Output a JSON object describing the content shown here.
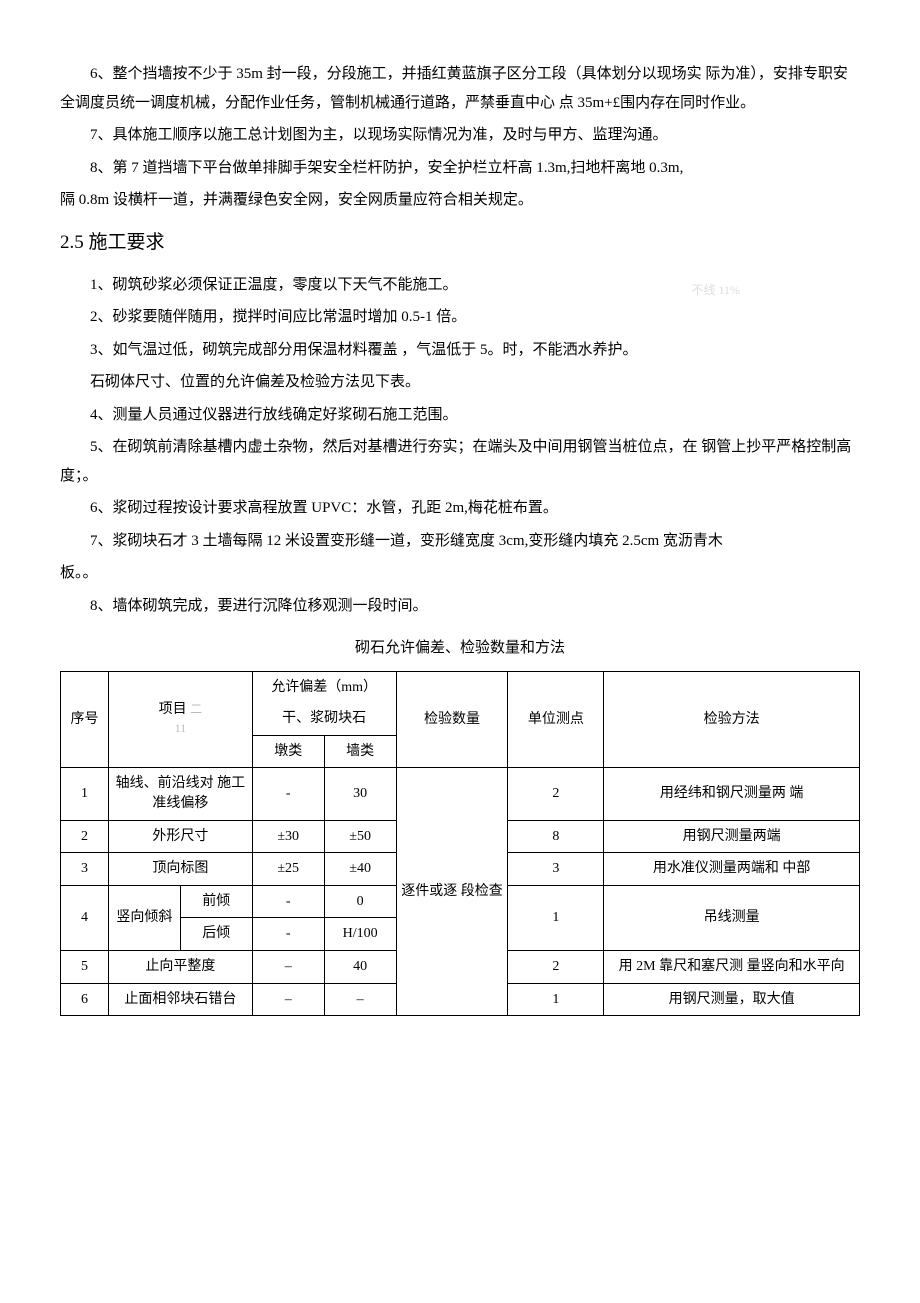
{
  "paras_before": [
    "6、整个挡墙按不少于 35m 封一段，分段施工，并插红黄蓝旗子区分工段（具体划分以现场实 际为准），安排专职安全调度员统一调度机械，分配作业任务，管制机械通行道路，严禁垂直中心 点 35m+£围内存在同时作业。",
    "7、具体施工顺序以施工总计划图为主，以现场实际情况为准，及时与甲方、监理沟通。",
    "8、第 7 道挡墙下平台做单排脚手架安全栏杆防护，安全护栏立杆高 1.3m,扫地杆离地 0.3m,"
  ],
  "para_noindent": "隔 0.8m 设横杆一道，并满覆绿色安全网，安全网质量应符合相关规定。",
  "heading": "2.5 施工要求",
  "watermark_text": "不线 11%",
  "paras_after": [
    "1、砌筑砂浆必须保证正温度，零度以下天气不能施工。",
    "2、砂浆要随伴随用，搅拌时间应比常温时增加 0.5-1 倍。",
    "3、如气温过低，砌筑完成部分用保温材料覆盖 ，气温低于 5。时，不能洒水养护。",
    "石砌体尺寸、位置的允许偏差及检验方法见下表。",
    "4、测量人员通过仪器进行放线确定好浆砌石施工范围。",
    "5、在砌筑前清除基槽内虚土杂物，然后对基槽进行夯实；在端头及中间用钢管当桩位点，在 钢管上抄平严格控制高度；。",
    "6、浆砌过程按设计要求高程放置 UPVC：水管，孔距 2m,梅花桩布置。",
    "7、浆砌块石才 3 土墙每隔 12 米设置变形缝一道，变形缝宽度 3cm,变形缝内填充 2.5cm 宽沥青木"
  ],
  "para_noindent2": "板。。",
  "para_last": "8、墙体砌筑完成，要进行沉降位移观测一段时间。",
  "table_title": "砌石允许偏差、检验数量和方法",
  "table": {
    "header": {
      "seq": "序号",
      "project": "项目",
      "dev_top": "允许偏差（mm）",
      "dev_mid": "干、浆砌块石",
      "dev_col1": "墩类",
      "dev_col2": "墙类",
      "check_qty": "检验数量",
      "unit_point": "单位测点",
      "method": "检验方法",
      "faint1": "二",
      "faint2": "11"
    },
    "check_merged": "逐件或逐 段检查",
    "rows": {
      "r1": {
        "seq": "1",
        "proj": "轴线、前沿线对 施工准线偏移",
        "dev1": "-",
        "dev2": "30",
        "unit": "2",
        "method": "用经纬和钢尺测量两 端"
      },
      "r2": {
        "seq": "2",
        "proj": "外形尺寸",
        "dev1": "±30",
        "dev2": "±50",
        "unit": "8",
        "method": "用钢尺测量两端"
      },
      "r3": {
        "seq": "3",
        "proj": "顶向标图",
        "dev1": "±25",
        "dev2": "±40",
        "unit": "3",
        "method": "用水准仪测量两端和 中部"
      },
      "r4": {
        "seq": "4",
        "proj_a": "竖向倾斜",
        "proj_b1": "前倾",
        "proj_b2": "后倾",
        "dev1a": "-",
        "dev2a": "0",
        "dev1b": "-",
        "dev2b": "H/100",
        "unit": "1",
        "method": "吊线测量"
      },
      "r5": {
        "seq": "5",
        "proj": "止向平整度",
        "dev1": "–",
        "dev2": "40",
        "unit": "2",
        "method": "用 2M 靠尺和塞尺测 量竖向和水平向"
      },
      "r6": {
        "seq": "6",
        "proj": "止面相邻块石错台",
        "dev1": "–",
        "dev2": "–",
        "unit": "1",
        "method": "用钢尺测量，取大值"
      }
    }
  }
}
